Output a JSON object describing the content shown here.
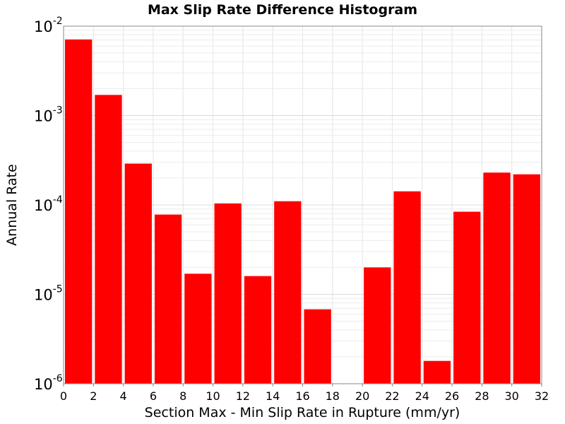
{
  "chart_data": {
    "type": "bar",
    "title": "Max Slip Rate Difference Histogram",
    "xlabel": "Section Max - Min Slip Rate in Rupture (mm/yr)",
    "ylabel": "Annual Rate",
    "y_scale": "log",
    "ylim": [
      1e-06,
      0.01
    ],
    "xlim": [
      0,
      32
    ],
    "bin_width": 2,
    "bar_color": "#ff0000",
    "grid": true,
    "x_ticks": [
      "0",
      "2",
      "4",
      "6",
      "8",
      "10",
      "12",
      "14",
      "16",
      "18",
      "20",
      "22",
      "24",
      "26",
      "28",
      "30",
      "32"
    ],
    "y_ticks": [
      {
        "base": "10",
        "exp": "-6",
        "value": 1e-06
      },
      {
        "base": "10",
        "exp": "-5",
        "value": 1e-05
      },
      {
        "base": "10",
        "exp": "-4",
        "value": 0.0001
      },
      {
        "base": "10",
        "exp": "-3",
        "value": 0.001
      },
      {
        "base": "10",
        "exp": "-2",
        "value": 0.01
      }
    ],
    "x": [
      1,
      3,
      5,
      7,
      9,
      11,
      13,
      15,
      17,
      19,
      21,
      23,
      25,
      27,
      29,
      31
    ],
    "values": [
      0.0071,
      0.0017,
      0.00029,
      7.8e-05,
      1.7e-05,
      0.000104,
      1.6e-05,
      0.00011,
      6.8e-06,
      0,
      2e-05,
      0.000142,
      1.8e-06,
      8.4e-05,
      0.00023,
      0.00022
    ]
  }
}
